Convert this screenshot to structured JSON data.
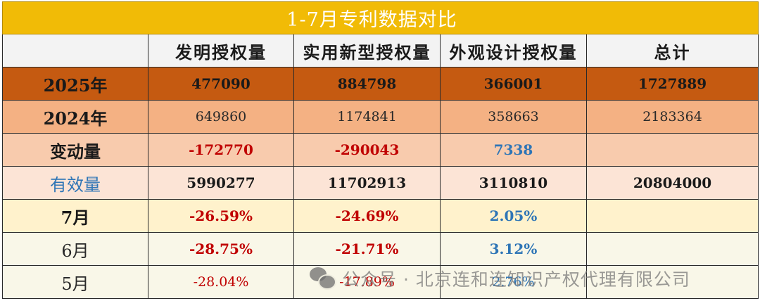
{
  "title": "1-7月专利数据对比",
  "columns": [
    "",
    "发明授权量",
    "实用新型授权量",
    "外观设计授权量",
    "总计"
  ],
  "rows": {
    "y2025": {
      "label": "2025年",
      "values": [
        "477090",
        "884798",
        "366001",
        "1727889"
      ]
    },
    "y2024": {
      "label": "2024年",
      "values": [
        "649860",
        "1174841",
        "358663",
        "2183364"
      ]
    },
    "change": {
      "label": "变动量",
      "values": [
        "-172770",
        "-290043",
        "7338",
        ""
      ]
    },
    "valid": {
      "label": "有效量",
      "values": [
        "5990277",
        "11702913",
        "3110810",
        "20804000"
      ]
    },
    "jul": {
      "label": "7月",
      "values": [
        "-26.59%",
        "-24.69%",
        "2.05%",
        ""
      ]
    },
    "jun": {
      "label": "6月",
      "values": [
        "-28.75%",
        "-21.71%",
        "3.12%",
        ""
      ]
    },
    "may": {
      "label": "5月",
      "values": [
        "-28.04%",
        "-17.89%",
        "2.76%",
        ""
      ]
    }
  },
  "colors": {
    "title_bg": "#f1bb06",
    "row_2025_bg": "#c55a11",
    "row_2024_bg": "#f4b183",
    "row_change_bg": "#f8cbad",
    "row_valid_bg": "#fce4d6",
    "row_jul_bg": "#fff2cc",
    "row_other_bg": "#f9f7e8",
    "negative": "#c00000",
    "positive": "#2e75b6"
  },
  "watermark": {
    "icon": "wechat-icon",
    "text": "公众号 · 北京连和连知识产权代理有限公司"
  }
}
